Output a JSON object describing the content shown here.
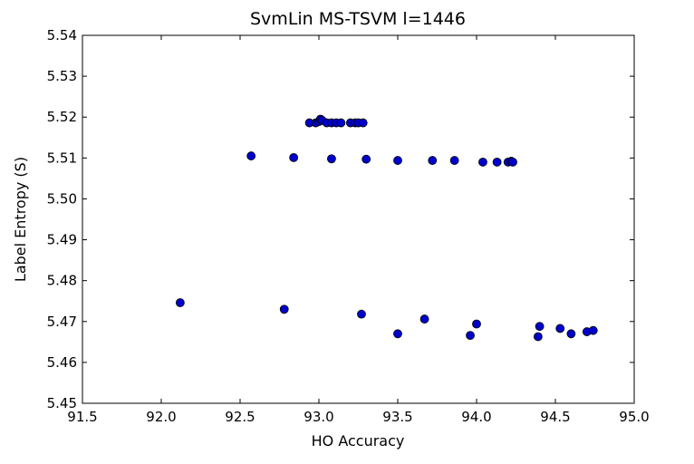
{
  "chart_data": {
    "type": "scatter",
    "title": "SvmLin MS-TSVM l=1446",
    "xlabel": "HO Accuracy",
    "ylabel": "Label Entropy (S)",
    "xlim": [
      91.5,
      95.0
    ],
    "ylim": [
      5.45,
      5.54
    ],
    "xticks": [
      91.5,
      92.0,
      92.5,
      93.0,
      93.5,
      94.0,
      94.5,
      95.0
    ],
    "xtick_labels": [
      "91.5",
      "92.0",
      "92.5",
      "93.0",
      "93.5",
      "94.0",
      "94.5",
      "95.0"
    ],
    "yticks": [
      5.45,
      5.46,
      5.47,
      5.48,
      5.49,
      5.5,
      5.51,
      5.52,
      5.53,
      5.54
    ],
    "ytick_labels": [
      "5.45",
      "5.46",
      "5.47",
      "5.48",
      "5.49",
      "5.50",
      "5.51",
      "5.52",
      "5.53",
      "5.54"
    ],
    "grid": false,
    "legend": "none",
    "marker_color": "#0000cc",
    "marker_edge_color": "#000000",
    "points": [
      {
        "x": 92.94,
        "y": 5.5186
      },
      {
        "x": 92.98,
        "y": 5.5186
      },
      {
        "x": 93.0,
        "y": 5.5189
      },
      {
        "x": 93.01,
        "y": 5.5195
      },
      {
        "x": 93.02,
        "y": 5.5192
      },
      {
        "x": 93.05,
        "y": 5.5186
      },
      {
        "x": 93.08,
        "y": 5.5186
      },
      {
        "x": 93.11,
        "y": 5.5186
      },
      {
        "x": 93.14,
        "y": 5.5186
      },
      {
        "x": 93.2,
        "y": 5.5186
      },
      {
        "x": 93.23,
        "y": 5.5186
      },
      {
        "x": 93.25,
        "y": 5.5186
      },
      {
        "x": 93.28,
        "y": 5.5186
      },
      {
        "x": 92.57,
        "y": 5.5105
      },
      {
        "x": 92.84,
        "y": 5.5101
      },
      {
        "x": 93.08,
        "y": 5.5098
      },
      {
        "x": 93.3,
        "y": 5.5097
      },
      {
        "x": 93.5,
        "y": 5.5094
      },
      {
        "x": 93.72,
        "y": 5.5094
      },
      {
        "x": 93.86,
        "y": 5.5094
      },
      {
        "x": 94.04,
        "y": 5.509
      },
      {
        "x": 94.13,
        "y": 5.509
      },
      {
        "x": 94.2,
        "y": 5.509
      },
      {
        "x": 94.22,
        "y": 5.5092
      },
      {
        "x": 94.23,
        "y": 5.509
      },
      {
        "x": 92.12,
        "y": 5.4746
      },
      {
        "x": 92.78,
        "y": 5.473
      },
      {
        "x": 93.27,
        "y": 5.4718
      },
      {
        "x": 93.67,
        "y": 5.4706
      },
      {
        "x": 94.0,
        "y": 5.4694
      },
      {
        "x": 93.5,
        "y": 5.467
      },
      {
        "x": 93.96,
        "y": 5.4666
      },
      {
        "x": 94.4,
        "y": 5.4688
      },
      {
        "x": 94.39,
        "y": 5.4663
      },
      {
        "x": 94.53,
        "y": 5.4683
      },
      {
        "x": 94.6,
        "y": 5.467
      },
      {
        "x": 94.7,
        "y": 5.4675
      },
      {
        "x": 94.74,
        "y": 5.4678
      }
    ]
  }
}
